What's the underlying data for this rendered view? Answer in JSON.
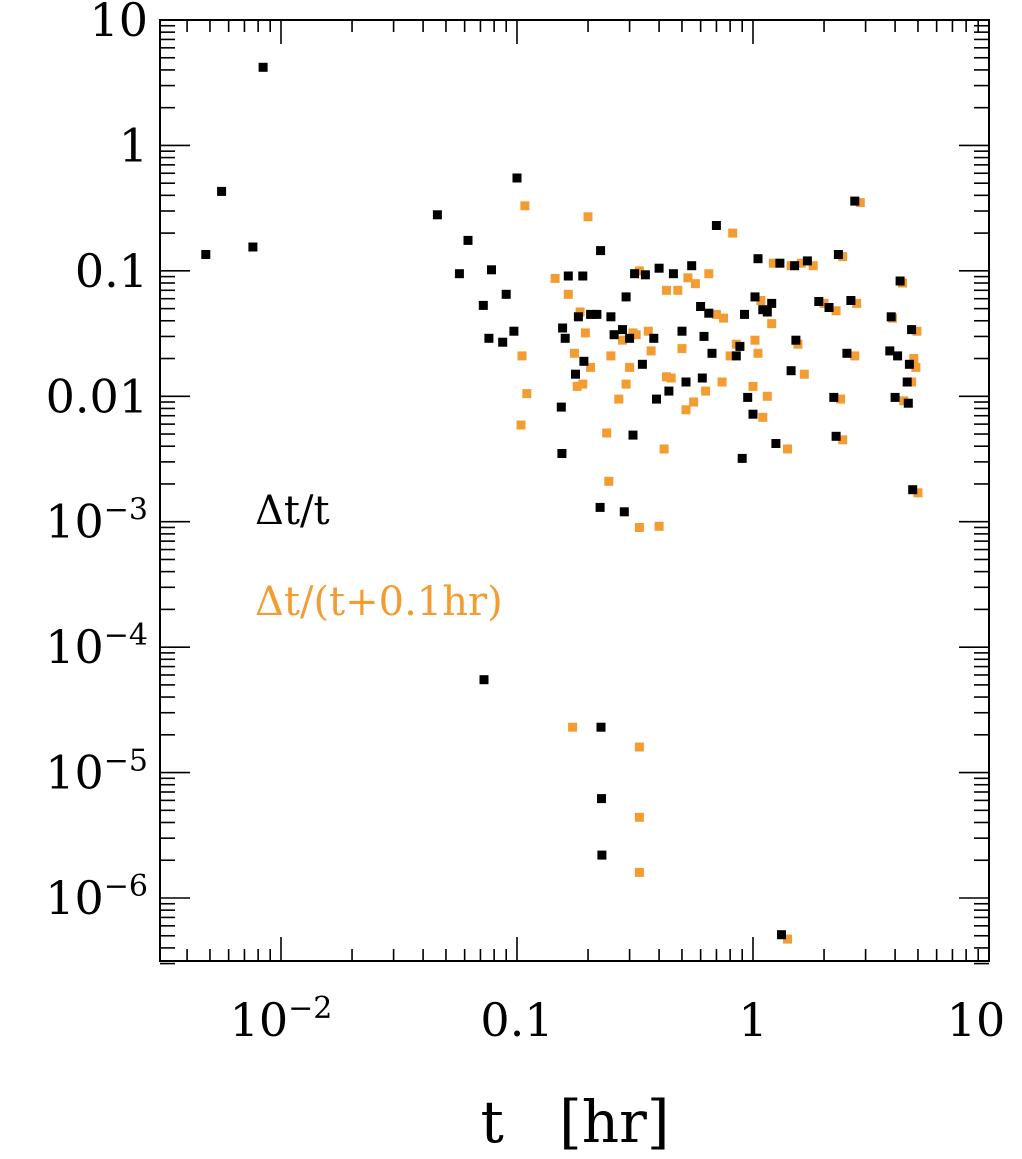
{
  "chart_data": {
    "type": "scatter",
    "title": "",
    "xlabel": "t   [hr]",
    "ylabel": "",
    "xscale": "log",
    "yscale": "log",
    "xlim": [
      0.004,
      10
    ],
    "ylim": [
      3e-07,
      10
    ],
    "grid": false,
    "legend_placement": "left-middle",
    "x_tick_labels": [
      {
        "value": 0.01,
        "base": "10",
        "exp": "−2"
      },
      {
        "value": 0.1,
        "text": "0.1"
      },
      {
        "value": 1,
        "text": "1"
      },
      {
        "value": 10,
        "text": "10"
      }
    ],
    "y_tick_labels": [
      {
        "value": 10,
        "text": "10"
      },
      {
        "value": 1,
        "text": "1"
      },
      {
        "value": 0.1,
        "text": "0.1"
      },
      {
        "value": 0.01,
        "text": "0.01"
      },
      {
        "value": 0.001,
        "base": "10",
        "exp": "−3"
      },
      {
        "value": 0.0001,
        "base": "10",
        "exp": "−4"
      },
      {
        "value": 1e-05,
        "base": "10",
        "exp": "−5"
      },
      {
        "value": 1e-06,
        "base": "10",
        "exp": "−6"
      }
    ],
    "series": [
      {
        "name": "Δt/t",
        "color": "#000000",
        "points": [
          [
            0.0048,
            0.135
          ],
          [
            0.0056,
            0.43
          ],
          [
            0.0076,
            0.155
          ],
          [
            0.0084,
            4.2
          ],
          [
            0.046,
            0.28
          ],
          [
            0.057,
            0.095
          ],
          [
            0.062,
            0.175
          ],
          [
            0.072,
            0.053
          ],
          [
            0.0725,
            5.5e-05
          ],
          [
            0.076,
            0.029
          ],
          [
            0.078,
            0.102
          ],
          [
            0.087,
            0.027
          ],
          [
            0.09,
            0.065
          ],
          [
            0.097,
            0.033
          ],
          [
            0.1,
            0.55
          ],
          [
            0.154,
            0.0082
          ],
          [
            0.155,
            0.0035
          ],
          [
            0.156,
            0.035
          ],
          [
            0.16,
            0.029
          ],
          [
            0.165,
            0.091
          ],
          [
            0.177,
            0.015
          ],
          [
            0.182,
            0.043
          ],
          [
            0.19,
            0.091
          ],
          [
            0.192,
            0.019
          ],
          [
            0.205,
            0.045
          ],
          [
            0.218,
            0.045
          ],
          [
            0.225,
            0.0013
          ],
          [
            0.226,
            0.145
          ],
          [
            0.227,
            2.3e-05
          ],
          [
            0.228,
            6.2e-06
          ],
          [
            0.229,
            2.2e-06
          ],
          [
            0.25,
            0.043
          ],
          [
            0.258,
            0.031
          ],
          [
            0.28,
            0.034
          ],
          [
            0.285,
            0.0012
          ],
          [
            0.29,
            0.062
          ],
          [
            0.3,
            0.029
          ],
          [
            0.31,
            0.0049
          ],
          [
            0.315,
            0.095
          ],
          [
            0.34,
            0.018
          ],
          [
            0.35,
            0.093
          ],
          [
            0.38,
            0.029
          ],
          [
            0.39,
            0.0095
          ],
          [
            0.4,
            0.105
          ],
          [
            0.44,
            0.011
          ],
          [
            0.46,
            0.095
          ],
          [
            0.5,
            0.033
          ],
          [
            0.52,
            0.013
          ],
          [
            0.55,
            0.11
          ],
          [
            0.6,
            0.052
          ],
          [
            0.61,
            0.014
          ],
          [
            0.62,
            0.03
          ],
          [
            0.65,
            0.046
          ],
          [
            0.67,
            0.022
          ],
          [
            0.7,
            0.23
          ],
          [
            0.85,
            0.021
          ],
          [
            0.88,
            0.025
          ],
          [
            0.9,
            0.0032
          ],
          [
            0.92,
            0.045
          ],
          [
            0.95,
            0.0098
          ],
          [
            1.0,
            0.0072
          ],
          [
            1.02,
            0.062
          ],
          [
            1.05,
            0.125
          ],
          [
            1.1,
            0.049
          ],
          [
            1.15,
            0.047
          ],
          [
            1.2,
            0.055
          ],
          [
            1.25,
            0.0042
          ],
          [
            1.3,
            0.115
          ],
          [
            1.32,
            5.1e-07
          ],
          [
            1.45,
            0.016
          ],
          [
            1.5,
            0.11
          ],
          [
            1.52,
            0.028
          ],
          [
            1.7,
            0.12
          ],
          [
            1.9,
            0.057
          ],
          [
            2.1,
            0.051
          ],
          [
            2.2,
            0.0098
          ],
          [
            2.25,
            0.0048
          ],
          [
            2.3,
            0.135
          ],
          [
            2.5,
            0.022
          ],
          [
            2.6,
            0.058
          ],
          [
            2.7,
            0.36
          ],
          [
            3.8,
            0.023
          ],
          [
            3.85,
            0.043
          ],
          [
            4.0,
            0.0098
          ],
          [
            4.1,
            0.021
          ],
          [
            4.2,
            0.083
          ],
          [
            4.5,
            0.013
          ],
          [
            4.55,
            0.0088
          ],
          [
            4.6,
            0.018
          ],
          [
            4.7,
            0.034
          ],
          [
            4.75,
            0.0018
          ]
        ]
      },
      {
        "name": "Δt/(t+0.1hr)",
        "color": "#F39C32",
        "points": [
          [
            0.105,
            0.021
          ],
          [
            0.108,
            0.33
          ],
          [
            0.11,
            0.0105
          ],
          [
            0.104,
            0.0059
          ],
          [
            0.145,
            0.087
          ],
          [
            0.165,
            0.065
          ],
          [
            0.172,
            2.3e-05
          ],
          [
            0.175,
            0.022
          ],
          [
            0.18,
            0.012
          ],
          [
            0.185,
            0.047
          ],
          [
            0.19,
            0.0125
          ],
          [
            0.195,
            0.032
          ],
          [
            0.2,
            0.27
          ],
          [
            0.205,
            0.017
          ],
          [
            0.21,
            0.045
          ],
          [
            0.24,
            0.0051
          ],
          [
            0.245,
            0.0021
          ],
          [
            0.25,
            0.021
          ],
          [
            0.27,
            0.0095
          ],
          [
            0.28,
            0.028
          ],
          [
            0.29,
            0.0125
          ],
          [
            0.3,
            0.017
          ],
          [
            0.31,
            0.032
          ],
          [
            0.32,
            0.031
          ],
          [
            0.33,
            0.1
          ],
          [
            0.33,
            0.0009
          ],
          [
            0.33,
            1.6e-05
          ],
          [
            0.33,
            4.4e-06
          ],
          [
            0.33,
            1.6e-06
          ],
          [
            0.36,
            0.033
          ],
          [
            0.37,
            0.023
          ],
          [
            0.4,
            0.00092
          ],
          [
            0.42,
            0.0038
          ],
          [
            0.43,
            0.07
          ],
          [
            0.45,
            0.014
          ],
          [
            0.48,
            0.07
          ],
          [
            0.5,
            0.024
          ],
          [
            0.52,
            0.0078
          ],
          [
            0.53,
            0.088
          ],
          [
            0.56,
            0.009
          ],
          [
            0.57,
            0.079
          ],
          [
            0.63,
            0.011
          ],
          [
            0.65,
            0.095
          ],
          [
            0.7,
            0.045
          ],
          [
            0.74,
            0.013
          ],
          [
            0.75,
            0.042
          ],
          [
            0.8,
            0.021
          ],
          [
            0.82,
            0.2
          ],
          [
            0.85,
            0.026
          ],
          [
            1.0,
            0.012
          ],
          [
            1.02,
            0.028
          ],
          [
            1.05,
            0.022
          ],
          [
            1.08,
            0.058
          ],
          [
            1.1,
            0.0068
          ],
          [
            1.15,
            0.01
          ],
          [
            1.2,
            0.038
          ],
          [
            1.22,
            0.115
          ],
          [
            1.4,
            0.0038
          ],
          [
            1.45,
            0.11
          ],
          [
            1.55,
            0.026
          ],
          [
            1.6,
            0.115
          ],
          [
            1.65,
            0.015
          ],
          [
            1.8,
            0.11
          ],
          [
            2.0,
            0.055
          ],
          [
            2.25,
            0.048
          ],
          [
            2.35,
            0.0095
          ],
          [
            2.4,
            0.13
          ],
          [
            2.4,
            0.0045
          ],
          [
            2.7,
            0.021
          ],
          [
            2.75,
            0.055
          ],
          [
            2.85,
            0.35
          ],
          [
            3.9,
            0.042
          ],
          [
            4.3,
            0.08
          ],
          [
            4.35,
            0.0092
          ],
          [
            4.7,
            0.013
          ],
          [
            4.8,
            0.02
          ],
          [
            4.9,
            0.017
          ],
          [
            4.95,
            0.033
          ],
          [
            5.0,
            0.0017
          ],
          [
            1.4,
            4.7e-07
          ],
          [
            0.43,
            0.0143
          ]
        ]
      }
    ],
    "legend": [
      {
        "text": "Δt/t",
        "color": "#000000"
      },
      {
        "text": "Δt/(t+0.1hr)",
        "color": "#F39C32"
      }
    ]
  }
}
